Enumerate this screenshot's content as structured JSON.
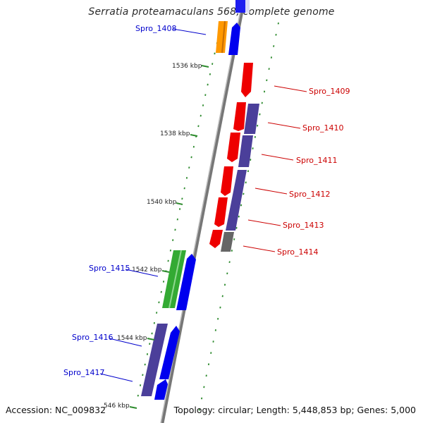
{
  "title": "Serratia proteamaculans 568, complete genome",
  "accession": "Accession: NC_009832",
  "topology": "Topology: circular; Length: 5,448,853 bp; Genes: 5,000",
  "colors": {
    "backbone": "#7a7a7a",
    "tick": "#2e8b2e",
    "label_blue": "#0000cc",
    "label_red": "#cc0000",
    "gene_red": "#ee0000",
    "gene_blue": "#0000ee",
    "gene_purple": "#4b3f9a",
    "gene_orange": "#ff9900",
    "gene_green": "#33aa33",
    "gene_gray": "#666666"
  },
  "scale_labels": [
    {
      "text": "1536 kbp"
    },
    {
      "text": "1538 kbp"
    },
    {
      "text": "1540 kbp"
    },
    {
      "text": "1542 kbp"
    },
    {
      "text": "1544 kbp"
    },
    {
      "text": "546 kbp"
    }
  ],
  "gene_labels": [
    {
      "text": "Spro_1408",
      "color": "blue"
    },
    {
      "text": "Spro_1409",
      "color": "red"
    },
    {
      "text": "Spro_1410",
      "color": "red"
    },
    {
      "text": "Spro_1411",
      "color": "red"
    },
    {
      "text": "Spro_1412",
      "color": "red"
    },
    {
      "text": "Spro_1413",
      "color": "red"
    },
    {
      "text": "Spro_1414",
      "color": "red"
    },
    {
      "text": "Spro_1415",
      "color": "blue"
    },
    {
      "text": "Spro_1416",
      "color": "blue"
    },
    {
      "text": "Spro_1417",
      "color": "blue"
    }
  ]
}
